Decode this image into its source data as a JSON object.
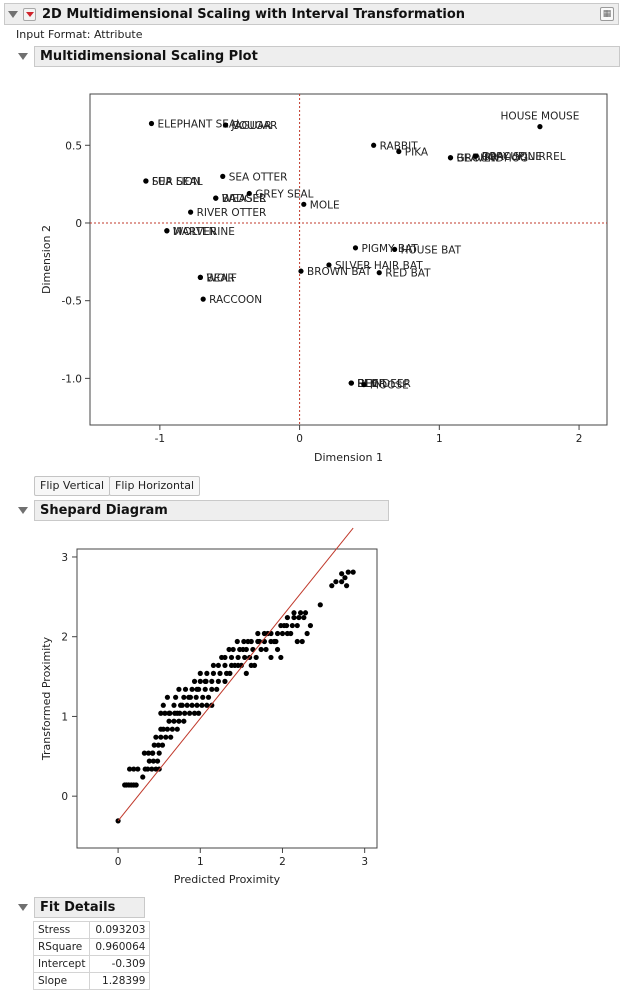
{
  "report": {
    "title": "2D Multidimensional Scaling with Interval Transformation",
    "input_format": "Input Format: Attribute"
  },
  "mds_section": {
    "title": "Multidimensional Scaling Plot",
    "chart_data": {
      "type": "scatter",
      "xlabel": "Dimension 1",
      "ylabel": "Dimension 2",
      "xlim": [
        -1.5,
        2.2
      ],
      "ylim": [
        -1.3,
        0.83
      ],
      "xticks": [
        "-1",
        "0",
        "1",
        "2"
      ],
      "yticks": [
        "0.5",
        "0",
        "-0.5",
        "-1.0"
      ],
      "reference_lines": {
        "x": 0,
        "y": 0,
        "color": "#c0392b",
        "style": "dotted"
      },
      "points": [
        {
          "x": 1.72,
          "y": 0.62,
          "label": "HOUSE MOUSE",
          "lpos": "above"
        },
        {
          "x": -1.06,
          "y": 0.64,
          "label": "ELEPHANT SEAL",
          "lpos": "right"
        },
        {
          "x": -0.53,
          "y": 0.63,
          "label": "JAGUAR",
          "lpos": "right"
        },
        {
          "x": -0.53,
          "y": 0.63,
          "label": "COUGAR",
          "lpos": "right"
        },
        {
          "x": 0.53,
          "y": 0.5,
          "label": "RABBIT",
          "lpos": "right"
        },
        {
          "x": 0.71,
          "y": 0.46,
          "label": "PIKA",
          "lpos": "right"
        },
        {
          "x": 1.08,
          "y": 0.42,
          "label": "BEAVER",
          "lpos": "right"
        },
        {
          "x": 1.08,
          "y": 0.42,
          "label": "GROUNDHOG",
          "lpos": "right"
        },
        {
          "x": 1.26,
          "y": 0.43,
          "label": "PORCUPINE",
          "lpos": "right"
        },
        {
          "x": 1.26,
          "y": 0.43,
          "label": "GRAY SQUIRREL",
          "lpos": "right"
        },
        {
          "x": -1.1,
          "y": 0.27,
          "label": "SEA LION",
          "lpos": "right"
        },
        {
          "x": -1.1,
          "y": 0.27,
          "label": "FUR SEAL",
          "lpos": "right"
        },
        {
          "x": -0.55,
          "y": 0.3,
          "label": "SEA OTTER",
          "lpos": "right"
        },
        {
          "x": -0.6,
          "y": 0.16,
          "label": "BADGER",
          "lpos": "right"
        },
        {
          "x": -0.6,
          "y": 0.16,
          "label": "WEASEL",
          "lpos": "right"
        },
        {
          "x": -0.36,
          "y": 0.19,
          "label": "GREY SEAL",
          "lpos": "right"
        },
        {
          "x": 0.03,
          "y": 0.12,
          "label": "MOLE",
          "lpos": "right"
        },
        {
          "x": -0.78,
          "y": 0.07,
          "label": "RIVER OTTER",
          "lpos": "right"
        },
        {
          "x": -0.95,
          "y": -0.05,
          "label": "MARTEN",
          "lpos": "right"
        },
        {
          "x": -0.95,
          "y": -0.05,
          "label": "WOLVERINE",
          "lpos": "right"
        },
        {
          "x": 0.4,
          "y": -0.16,
          "label": "PIGMY BAT",
          "lpos": "right"
        },
        {
          "x": 0.68,
          "y": -0.17,
          "label": "HOUSE BAT",
          "lpos": "right"
        },
        {
          "x": 0.21,
          "y": -0.27,
          "label": "SILVER HAIR BAT",
          "lpos": "right"
        },
        {
          "x": 0.01,
          "y": -0.31,
          "label": "BROWN BAT",
          "lpos": "right"
        },
        {
          "x": 0.57,
          "y": -0.32,
          "label": "RED BAT",
          "lpos": "right"
        },
        {
          "x": -0.71,
          "y": -0.35,
          "label": "BEAR",
          "lpos": "right"
        },
        {
          "x": -0.71,
          "y": -0.35,
          "label": "WOLF",
          "lpos": "right"
        },
        {
          "x": -0.69,
          "y": -0.49,
          "label": "RACCOON",
          "lpos": "right"
        },
        {
          "x": 0.37,
          "y": -1.03,
          "label": "REINDEER",
          "lpos": "right"
        },
        {
          "x": 0.37,
          "y": -1.03,
          "label": "ELK",
          "lpos": "right"
        },
        {
          "x": 0.37,
          "y": -1.03,
          "label": "DEER",
          "lpos": "right"
        },
        {
          "x": 0.46,
          "y": -1.04,
          "label": "MOOSE",
          "lpos": "right"
        }
      ]
    }
  },
  "buttons": {
    "flip_vertical": "Flip Vertical",
    "flip_horizontal": "Flip Horizontal"
  },
  "shepard_section": {
    "title": "Shepard Diagram",
    "chart_data": {
      "type": "scatter",
      "xlabel": "Predicted Proximity",
      "ylabel": "Transformed Proximity",
      "xlim": [
        -0.5,
        3.15
      ],
      "ylim": [
        -0.65,
        3.1
      ],
      "xticks": [
        "0",
        "1",
        "2",
        "3"
      ],
      "yticks": [
        "3",
        "2",
        "1",
        "0"
      ],
      "fit_line": {
        "slope": 1.28399,
        "intercept": -0.309,
        "x_range": [
          0,
          2.86
        ],
        "color": "#c0392b"
      },
      "points": [
        [
          0.0,
          -0.31
        ],
        [
          0.08,
          0.14
        ],
        [
          0.1,
          0.14
        ],
        [
          0.13,
          0.14
        ],
        [
          0.16,
          0.14
        ],
        [
          0.19,
          0.14
        ],
        [
          0.22,
          0.14
        ],
        [
          0.14,
          0.34
        ],
        [
          0.19,
          0.34
        ],
        [
          0.24,
          0.34
        ],
        [
          0.3,
          0.24
        ],
        [
          0.33,
          0.34
        ],
        [
          0.36,
          0.34
        ],
        [
          0.41,
          0.34
        ],
        [
          0.46,
          0.34
        ],
        [
          0.5,
          0.34
        ],
        [
          0.38,
          0.44
        ],
        [
          0.43,
          0.44
        ],
        [
          0.48,
          0.44
        ],
        [
          0.32,
          0.54
        ],
        [
          0.37,
          0.54
        ],
        [
          0.42,
          0.54
        ],
        [
          0.5,
          0.54
        ],
        [
          0.44,
          0.64
        ],
        [
          0.49,
          0.64
        ],
        [
          0.54,
          0.64
        ],
        [
          0.46,
          0.74
        ],
        [
          0.52,
          0.74
        ],
        [
          0.58,
          0.74
        ],
        [
          0.64,
          0.74
        ],
        [
          0.55,
          0.84
        ],
        [
          0.6,
          0.84
        ],
        [
          0.66,
          0.84
        ],
        [
          0.72,
          0.84
        ],
        [
          0.62,
          0.94
        ],
        [
          0.68,
          0.94
        ],
        [
          0.74,
          0.94
        ],
        [
          0.8,
          0.94
        ],
        [
          0.52,
          1.04
        ],
        [
          0.57,
          1.04
        ],
        [
          0.63,
          1.04
        ],
        [
          0.69,
          1.04
        ],
        [
          0.75,
          1.04
        ],
        [
          0.81,
          1.04
        ],
        [
          0.87,
          1.04
        ],
        [
          0.93,
          1.04
        ],
        [
          0.98,
          1.04
        ],
        [
          0.55,
          1.14
        ],
        [
          0.6,
          1.24
        ],
        [
          0.68,
          1.14
        ],
        [
          0.76,
          1.14
        ],
        [
          0.84,
          1.14
        ],
        [
          0.9,
          1.14
        ],
        [
          0.96,
          1.14
        ],
        [
          1.02,
          1.14
        ],
        [
          1.08,
          1.14
        ],
        [
          1.14,
          1.14
        ],
        [
          0.7,
          1.24
        ],
        [
          0.8,
          1.24
        ],
        [
          0.88,
          1.24
        ],
        [
          0.95,
          1.24
        ],
        [
          1.03,
          1.24
        ],
        [
          1.1,
          1.24
        ],
        [
          0.74,
          1.34
        ],
        [
          0.82,
          1.34
        ],
        [
          0.9,
          1.34
        ],
        [
          0.98,
          1.34
        ],
        [
          1.06,
          1.34
        ],
        [
          1.14,
          1.34
        ],
        [
          1.2,
          1.34
        ],
        [
          0.93,
          1.44
        ],
        [
          1.0,
          1.44
        ],
        [
          1.07,
          1.44
        ],
        [
          1.14,
          1.44
        ],
        [
          1.22,
          1.44
        ],
        [
          1.3,
          1.44
        ],
        [
          1.0,
          1.54
        ],
        [
          1.08,
          1.54
        ],
        [
          1.16,
          1.54
        ],
        [
          1.24,
          1.54
        ],
        [
          1.32,
          1.54
        ],
        [
          1.22,
          1.64
        ],
        [
          1.3,
          1.64
        ],
        [
          1.38,
          1.64
        ],
        [
          1.46,
          1.64
        ],
        [
          1.3,
          1.74
        ],
        [
          1.38,
          1.74
        ],
        [
          1.46,
          1.74
        ],
        [
          1.54,
          1.74
        ],
        [
          1.6,
          1.74
        ],
        [
          1.4,
          1.84
        ],
        [
          1.48,
          1.84
        ],
        [
          1.56,
          1.84
        ],
        [
          1.64,
          1.84
        ],
        [
          1.53,
          1.94
        ],
        [
          1.62,
          1.94
        ],
        [
          1.7,
          1.94
        ],
        [
          1.78,
          1.94
        ],
        [
          1.86,
          1.94
        ],
        [
          1.92,
          1.94
        ],
        [
          1.5,
          1.64
        ],
        [
          1.56,
          1.54
        ],
        [
          1.62,
          1.64
        ],
        [
          1.68,
          1.74
        ],
        [
          1.74,
          1.84
        ],
        [
          1.8,
          1.84
        ],
        [
          1.86,
          1.74
        ],
        [
          1.94,
          1.84
        ],
        [
          1.98,
          1.74
        ],
        [
          1.7,
          2.04
        ],
        [
          1.78,
          2.04
        ],
        [
          1.86,
          2.04
        ],
        [
          1.94,
          2.04
        ],
        [
          2.0,
          2.04
        ],
        [
          2.06,
          2.04
        ],
        [
          1.98,
          2.14
        ],
        [
          2.05,
          2.14
        ],
        [
          2.12,
          2.14
        ],
        [
          2.18,
          2.14
        ],
        [
          2.06,
          2.24
        ],
        [
          2.14,
          2.24
        ],
        [
          2.2,
          2.24
        ],
        [
          2.26,
          2.24
        ],
        [
          2.14,
          2.3
        ],
        [
          2.22,
          2.3
        ],
        [
          2.18,
          1.94
        ],
        [
          2.24,
          1.94
        ],
        [
          2.3,
          2.04
        ],
        [
          2.34,
          2.14
        ],
        [
          2.6,
          2.64
        ],
        [
          2.65,
          2.69
        ],
        [
          2.72,
          2.69
        ],
        [
          2.76,
          2.74
        ],
        [
          2.8,
          2.81
        ],
        [
          2.86,
          2.81
        ],
        [
          2.72,
          2.79
        ],
        [
          2.78,
          2.64
        ],
        [
          1.35,
          1.84
        ],
        [
          1.45,
          1.94
        ],
        [
          0.42,
          0.54
        ],
        [
          0.52,
          0.84
        ],
        [
          0.62,
          1.04
        ],
        [
          0.72,
          1.04
        ],
        [
          0.78,
          1.14
        ],
        [
          0.86,
          1.24
        ],
        [
          0.96,
          1.34
        ],
        [
          1.06,
          1.44
        ],
        [
          1.16,
          1.64
        ],
        [
          1.26,
          1.74
        ],
        [
          1.36,
          1.54
        ],
        [
          1.42,
          1.64
        ],
        [
          1.52,
          1.84
        ],
        [
          1.58,
          1.94
        ],
        [
          1.66,
          1.64
        ],
        [
          1.72,
          1.94
        ],
        [
          1.82,
          2.04
        ],
        [
          1.9,
          1.94
        ],
        [
          2.02,
          2.14
        ],
        [
          2.1,
          2.04
        ],
        [
          2.28,
          2.3
        ],
        [
          2.46,
          2.4
        ]
      ]
    }
  },
  "fit_section": {
    "title": "Fit Details",
    "rows": [
      {
        "key": "Stress",
        "value": "0.093203"
      },
      {
        "key": "RSquare",
        "value": "0.960064"
      },
      {
        "key": "Intercept",
        "value": "-0.309"
      },
      {
        "key": "Slope",
        "value": "1.28399"
      }
    ]
  }
}
